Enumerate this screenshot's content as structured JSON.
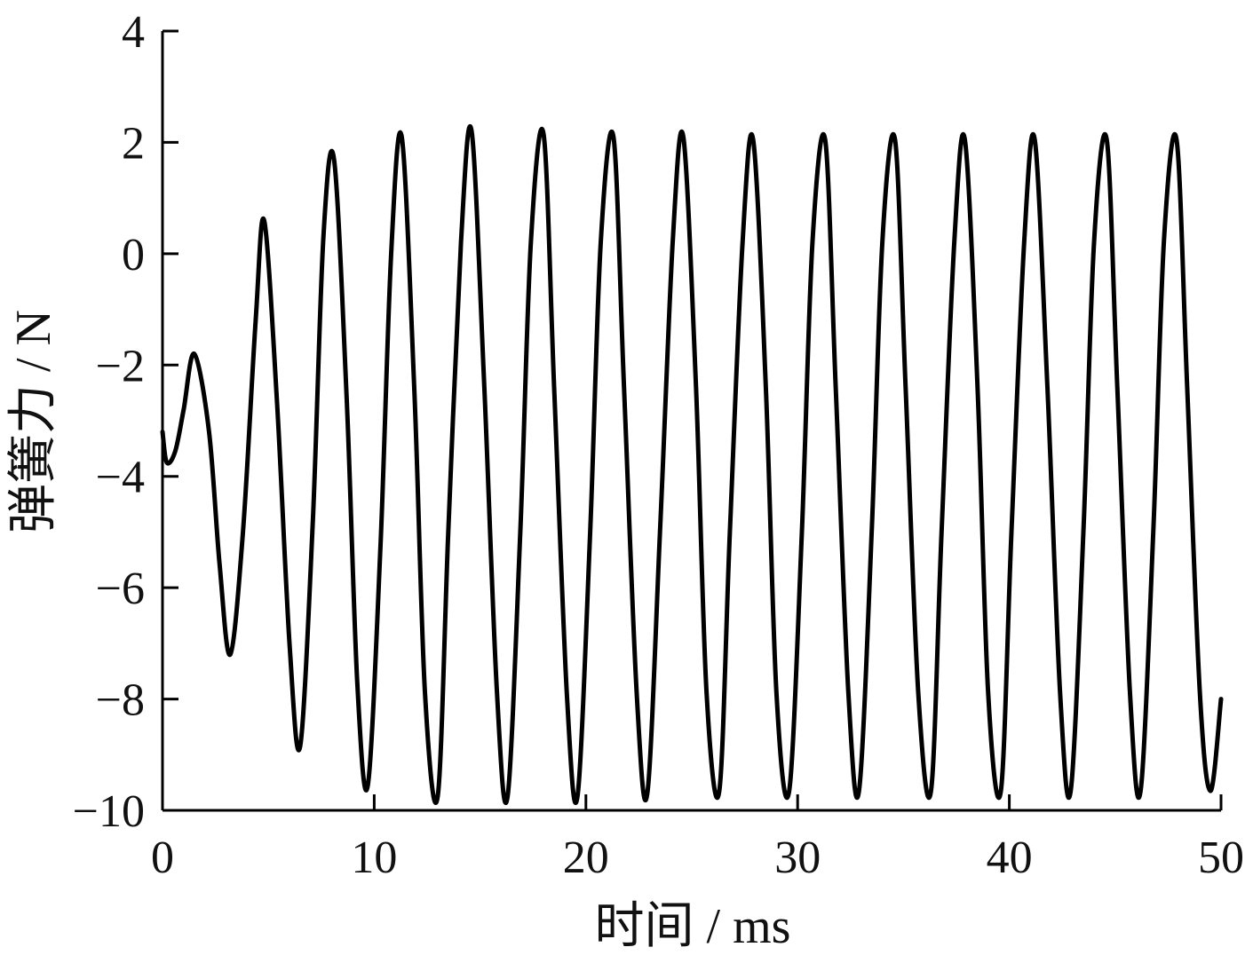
{
  "chart_data": {
    "type": "line",
    "title": "",
    "xlabel": "时间 / ms",
    "ylabel": "弹簧力 / N",
    "xlim": [
      0,
      50
    ],
    "ylim": [
      -10,
      4
    ],
    "x_ticks": [
      0,
      10,
      20,
      30,
      40,
      50
    ],
    "y_ticks": [
      4,
      2,
      0,
      -2,
      -4,
      -6,
      -8,
      -10
    ],
    "x_tick_labels": [
      "0",
      "10",
      "20",
      "30",
      "40",
      "50"
    ],
    "y_tick_labels": [
      "4",
      "2",
      "0",
      "−2",
      "−4",
      "−6",
      "−8",
      "−10"
    ],
    "grid": false,
    "legend": false,
    "line_color": "#000000",
    "series": [
      {
        "x": [
          0,
          0.2,
          0.6,
          1.0,
          1.5,
          2.2,
          2.7,
          3.2,
          3.8,
          4.4,
          4.8,
          5.4,
          6.0,
          6.5,
          7.1,
          7.6,
          8.1,
          8.7,
          9.2,
          9.7,
          10.3,
          10.8,
          11.3,
          11.9,
          12.4,
          13.0,
          13.5,
          14.1,
          14.6,
          15.2,
          15.8,
          16.3,
          16.9,
          17.4,
          18.0,
          18.5,
          19.1,
          19.6,
          20.2,
          20.7,
          21.3,
          21.8,
          22.4,
          22.9,
          23.5,
          24.1,
          24.6,
          25.2,
          25.7,
          26.3,
          26.8,
          27.4,
          27.9,
          28.5,
          29.0,
          29.6,
          30.2,
          30.7,
          31.3,
          31.8,
          32.4,
          32.9,
          33.5,
          34.0,
          34.6,
          35.1,
          35.7,
          36.3,
          36.8,
          37.4,
          37.9,
          38.5,
          39.0,
          39.6,
          40.1,
          40.7,
          41.2,
          41.8,
          42.4,
          42.9,
          43.5,
          44.0,
          44.6,
          45.1,
          45.7,
          46.2,
          46.8,
          47.3,
          47.9,
          48.4,
          49.0,
          49.5,
          50.0
        ],
        "y": [
          -3.2,
          -3.75,
          -3.55,
          -2.8,
          -1.8,
          -3.2,
          -5.6,
          -7.2,
          -5.0,
          -1.2,
          0.6,
          -2.6,
          -7.0,
          -8.85,
          -4.8,
          0.3,
          1.7,
          -2.6,
          -7.7,
          -9.55,
          -5.2,
          0.0,
          2.1,
          -2.5,
          -7.9,
          -9.75,
          -5.0,
          0.2,
          2.2,
          -2.4,
          -7.9,
          -9.75,
          -5.0,
          0.2,
          2.15,
          -2.4,
          -7.9,
          -9.75,
          -5.0,
          0.2,
          2.1,
          -2.4,
          -7.9,
          -9.7,
          -5.0,
          0.2,
          2.1,
          -2.4,
          -7.9,
          -9.65,
          -5.0,
          0.2,
          2.05,
          -2.4,
          -7.9,
          -9.65,
          -5.0,
          0.2,
          2.05,
          -2.4,
          -7.9,
          -9.65,
          -5.0,
          0.2,
          2.05,
          -2.4,
          -7.9,
          -9.65,
          -5.0,
          0.2,
          2.05,
          -2.4,
          -7.9,
          -9.65,
          -5.0,
          0.2,
          2.05,
          -2.4,
          -7.9,
          -9.65,
          -5.0,
          0.2,
          2.05,
          -2.4,
          -7.9,
          -9.65,
          -5.0,
          0.2,
          2.05,
          -2.4,
          -7.9,
          -9.65,
          -8.0
        ]
      }
    ]
  }
}
